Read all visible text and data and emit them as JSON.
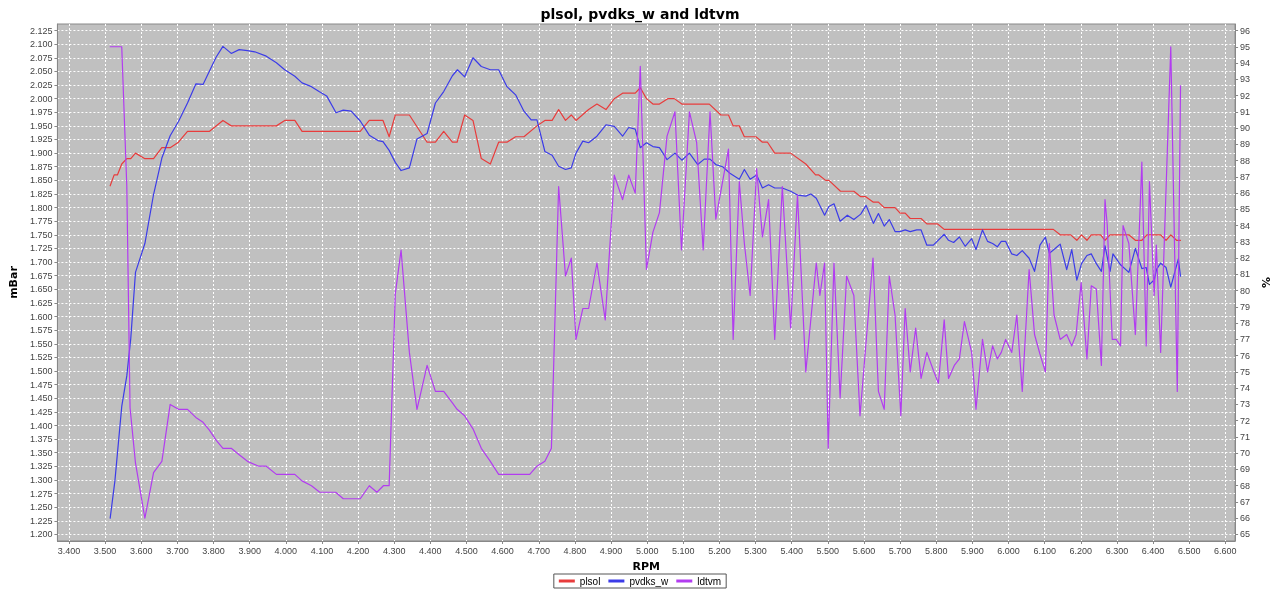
{
  "chart_data": {
    "type": "line",
    "title": "plsol, pvdks_w and ldtvm",
    "xlabel": "RPM",
    "ylabel": "mBar",
    "y2label": "%",
    "grid": true,
    "legend": "bottom",
    "xlim": [
      3368,
      6627
    ],
    "xticks": [
      {
        "value": 3400,
        "label": "3.400"
      },
      {
        "value": 3500,
        "label": "3.500"
      },
      {
        "value": 3600,
        "label": "3.600"
      },
      {
        "value": 3700,
        "label": "3.700"
      },
      {
        "value": 3800,
        "label": "3.800"
      },
      {
        "value": 3900,
        "label": "3.900"
      },
      {
        "value": 4000,
        "label": "4.000"
      },
      {
        "value": 4100,
        "label": "4.100"
      },
      {
        "value": 4200,
        "label": "4.200"
      },
      {
        "value": 4300,
        "label": "4.300"
      },
      {
        "value": 4400,
        "label": "4.400"
      },
      {
        "value": 4500,
        "label": "4.500"
      },
      {
        "value": 4600,
        "label": "4.600"
      },
      {
        "value": 4700,
        "label": "4.700"
      },
      {
        "value": 4800,
        "label": "4.800"
      },
      {
        "value": 4900,
        "label": "4.900"
      },
      {
        "value": 5000,
        "label": "5.000"
      },
      {
        "value": 5100,
        "label": "5.100"
      },
      {
        "value": 5200,
        "label": "5.200"
      },
      {
        "value": 5300,
        "label": "5.300"
      },
      {
        "value": 5400,
        "label": "5.400"
      },
      {
        "value": 5500,
        "label": "5.500"
      },
      {
        "value": 5600,
        "label": "5.600"
      },
      {
        "value": 5700,
        "label": "5.700"
      },
      {
        "value": 5800,
        "label": "5.800"
      },
      {
        "value": 5900,
        "label": "5.900"
      },
      {
        "value": 6000,
        "label": "6.000"
      },
      {
        "value": 6100,
        "label": "6.100"
      },
      {
        "value": 6200,
        "label": "6.200"
      },
      {
        "value": 6300,
        "label": "6.300"
      },
      {
        "value": 6400,
        "label": "6.400"
      },
      {
        "value": 6500,
        "label": "6.500"
      },
      {
        "value": 6600,
        "label": "6.600"
      }
    ],
    "ylim": [
      1188,
      2137
    ],
    "yticks": [
      {
        "value": 1200,
        "label": "1.200"
      },
      {
        "value": 1225,
        "label": "1.225"
      },
      {
        "value": 1250,
        "label": "1.250"
      },
      {
        "value": 1275,
        "label": "1.275"
      },
      {
        "value": 1300,
        "label": "1.300"
      },
      {
        "value": 1325,
        "label": "1.325"
      },
      {
        "value": 1350,
        "label": "1.350"
      },
      {
        "value": 1375,
        "label": "1.375"
      },
      {
        "value": 1400,
        "label": "1.400"
      },
      {
        "value": 1425,
        "label": "1.425"
      },
      {
        "value": 1450,
        "label": "1.450"
      },
      {
        "value": 1475,
        "label": "1.475"
      },
      {
        "value": 1500,
        "label": "1.500"
      },
      {
        "value": 1525,
        "label": "1.525"
      },
      {
        "value": 1550,
        "label": "1.550"
      },
      {
        "value": 1575,
        "label": "1.575"
      },
      {
        "value": 1600,
        "label": "1.600"
      },
      {
        "value": 1625,
        "label": "1.625"
      },
      {
        "value": 1650,
        "label": "1.650"
      },
      {
        "value": 1675,
        "label": "1.675"
      },
      {
        "value": 1700,
        "label": "1.700"
      },
      {
        "value": 1725,
        "label": "1.725"
      },
      {
        "value": 1750,
        "label": "1.750"
      },
      {
        "value": 1775,
        "label": "1.775"
      },
      {
        "value": 1800,
        "label": "1.800"
      },
      {
        "value": 1825,
        "label": "1.825"
      },
      {
        "value": 1850,
        "label": "1.850"
      },
      {
        "value": 1875,
        "label": "1.875"
      },
      {
        "value": 1900,
        "label": "1.900"
      },
      {
        "value": 1925,
        "label": "1.925"
      },
      {
        "value": 1950,
        "label": "1.950"
      },
      {
        "value": 1975,
        "label": "1.975"
      },
      {
        "value": 2000,
        "label": "2.000"
      },
      {
        "value": 2025,
        "label": "2.025"
      },
      {
        "value": 2050,
        "label": "2.050"
      },
      {
        "value": 2075,
        "label": "2.075"
      },
      {
        "value": 2100,
        "label": "2.100"
      },
      {
        "value": 2125,
        "label": "2.125"
      }
    ],
    "y2lim": [
      64.6,
      96.4
    ],
    "y2ticks": [
      65,
      66,
      67,
      68,
      69,
      70,
      71,
      72,
      73,
      74,
      75,
      76,
      77,
      78,
      79,
      80,
      81,
      82,
      83,
      84,
      85,
      86,
      87,
      88,
      89,
      90,
      91,
      92,
      93,
      94,
      95,
      96
    ],
    "series": [
      {
        "name": "plsol",
        "color": "#e83c3c",
        "x": [
          3514,
          3525,
          3534,
          3546,
          3560,
          3571,
          3584,
          3609,
          3634,
          3657,
          3680,
          3703,
          3728,
          3789,
          3826,
          3849,
          3974,
          3997,
          4025,
          4045,
          4206,
          4231,
          4269,
          4286,
          4303,
          4342,
          4391,
          4414,
          4437,
          4461,
          4474,
          4495,
          4518,
          4541,
          4566,
          4589,
          4612,
          4636,
          4659,
          4695,
          4717,
          4737,
          4755,
          4774,
          4790,
          4803,
          4838,
          4861,
          4886,
          4909,
          4932,
          4967,
          4981,
          4998,
          5016,
          5034,
          5057,
          5075,
          5096,
          5172,
          5204,
          5225,
          5238,
          5255,
          5269,
          5301,
          5319,
          5333,
          5353,
          5397,
          5439,
          5466,
          5475,
          5494,
          5503,
          5535,
          5572,
          5591,
          5605,
          5626,
          5640,
          5656,
          5686,
          5700,
          5714,
          5728,
          5758,
          5774,
          5804,
          5822,
          6124,
          6143,
          6172,
          6189,
          6202,
          6217,
          6229,
          6255,
          6267,
          6281,
          6333,
          6351,
          6369,
          6383,
          6421,
          6436,
          6449,
          6465,
          6476
        ],
        "values": [
          1840,
          1860,
          1860,
          1880,
          1890,
          1890,
          1900,
          1890,
          1890,
          1910,
          1910,
          1920,
          1940,
          1940,
          1960,
          1950,
          1950,
          1960,
          1960,
          1940,
          1940,
          1960,
          1960,
          1930,
          1970,
          1970,
          1920,
          1920,
          1940,
          1920,
          1920,
          1970,
          1960,
          1890,
          1880,
          1920,
          1920,
          1930,
          1930,
          1950,
          1960,
          1960,
          1980,
          1960,
          1970,
          1960,
          1980,
          1990,
          1980,
          2000,
          2010,
          2010,
          2020,
          2000,
          1990,
          1990,
          2000,
          2000,
          1990,
          1990,
          1970,
          1970,
          1950,
          1950,
          1930,
          1930,
          1920,
          1920,
          1900,
          1900,
          1880,
          1860,
          1860,
          1850,
          1850,
          1830,
          1830,
          1820,
          1820,
          1810,
          1810,
          1800,
          1800,
          1790,
          1790,
          1780,
          1780,
          1770,
          1770,
          1760,
          1760,
          1750,
          1750,
          1740,
          1750,
          1740,
          1750,
          1750,
          1740,
          1750,
          1750,
          1740,
          1740,
          1750,
          1750,
          1740,
          1750,
          1740,
          1740
        ]
      },
      {
        "name": "pvdks_w",
        "color": "#3c3ce8",
        "x": [
          3514,
          3527,
          3546,
          3560,
          3571,
          3584,
          3610,
          3634,
          3657,
          3680,
          3703,
          3728,
          3751,
          3771,
          3807,
          3826,
          3849,
          3871,
          3894,
          3914,
          3946,
          3974,
          3997,
          4025,
          4045,
          4071,
          4092,
          4113,
          4139,
          4159,
          4181,
          4206,
          4231,
          4255,
          4269,
          4286,
          4303,
          4319,
          4342,
          4363,
          4391,
          4414,
          4437,
          4461,
          4475,
          4495,
          4518,
          4541,
          4566,
          4589,
          4612,
          4636,
          4659,
          4679,
          4695,
          4717,
          4737,
          4755,
          4774,
          4790,
          4803,
          4822,
          4838,
          4861,
          4886,
          4909,
          4932,
          4949,
          4967,
          4981,
          4998,
          5016,
          5034,
          5055,
          5077,
          5096,
          5117,
          5140,
          5158,
          5174,
          5190,
          5209,
          5229,
          5255,
          5269,
          5285,
          5303,
          5319,
          5336,
          5353,
          5374,
          5397,
          5416,
          5439,
          5453,
          5468,
          5491,
          5503,
          5517,
          5534,
          5554,
          5572,
          5591,
          5606,
          5626,
          5640,
          5656,
          5670,
          5686,
          5700,
          5714,
          5728,
          5746,
          5758,
          5774,
          5792,
          5822,
          5834,
          5848,
          5864,
          5880,
          5898,
          5910,
          5928,
          5942,
          5956,
          5969,
          5980,
          5992,
          6009,
          6023,
          6038,
          6057,
          6072,
          6087,
          6102,
          6113,
          6129,
          6143,
          6161,
          6175,
          6189,
          6202,
          6217,
          6229,
          6243,
          6257,
          6267,
          6281,
          6289,
          6310,
          6333,
          6351,
          6369,
          6381,
          6390,
          6403,
          6410,
          6421,
          6436,
          6449,
          6461,
          6470,
          6476
        ],
        "values": [
          1230,
          1298,
          1435,
          1491,
          1560,
          1681,
          1734,
          1824,
          1891,
          1932,
          1958,
          1992,
          2027,
          2026,
          2076,
          2096,
          2083,
          2090,
          2088,
          2086,
          2078,
          2066,
          2053,
          2041,
          2029,
          2022,
          2013,
          2005,
          1974,
          1979,
          1977,
          1959,
          1933,
          1923,
          1921,
          1905,
          1883,
          1868,
          1873,
          1926,
          1936,
          1992,
          2013,
          2042,
          2053,
          2040,
          2075,
          2059,
          2053,
          2053,
          2022,
          2007,
          1977,
          1961,
          1961,
          1903,
          1896,
          1876,
          1870,
          1873,
          1900,
          1922,
          1919,
          1931,
          1952,
          1949,
          1931,
          1947,
          1944,
          1910,
          1919,
          1912,
          1910,
          1888,
          1900,
          1887,
          1900,
          1879,
          1889,
          1889,
          1879,
          1875,
          1863,
          1852,
          1870,
          1852,
          1860,
          1836,
          1842,
          1836,
          1836,
          1830,
          1823,
          1821,
          1825,
          1817,
          1786,
          1802,
          1807,
          1775,
          1786,
          1778,
          1788,
          1804,
          1771,
          1789,
          1766,
          1778,
          1756,
          1756,
          1759,
          1756,
          1759,
          1759,
          1731,
          1731,
          1751,
          1740,
          1736,
          1746,
          1729,
          1743,
          1723,
          1759,
          1738,
          1734,
          1728,
          1738,
          1738,
          1715,
          1712,
          1721,
          1707,
          1683,
          1731,
          1746,
          1716,
          1725,
          1733,
          1686,
          1723,
          1667,
          1697,
          1712,
          1715,
          1697,
          1683,
          1730,
          1683,
          1715,
          1695,
          1681,
          1725,
          1688,
          1690,
          1659,
          1667,
          1687,
          1698,
          1690,
          1654,
          1684,
          1706,
          1674
        ]
      },
      {
        "name": "ldtvm",
        "color": "#b23cf0",
        "axis": "y2",
        "x": [
          3514,
          3546,
          3560,
          3569,
          3584,
          3610,
          3634,
          3657,
          3680,
          3703,
          3728,
          3751,
          3771,
          3789,
          3807,
          3826,
          3849,
          3871,
          3894,
          3925,
          3946,
          3974,
          4025,
          4045,
          4071,
          4094,
          4138,
          4159,
          4206,
          4231,
          4252,
          4270,
          4286,
          4303,
          4319,
          4342,
          4363,
          4391,
          4414,
          4437,
          4461,
          4474,
          4495,
          4518,
          4541,
          4566,
          4589,
          4675,
          4695,
          4717,
          4735,
          4755,
          4774,
          4790,
          4803,
          4822,
          4838,
          4861,
          4884,
          4909,
          4932,
          4949,
          4967,
          4981,
          4998,
          5016,
          5034,
          5055,
          5077,
          5095,
          5117,
          5137,
          5155,
          5174,
          5190,
          5225,
          5238,
          5255,
          5269,
          5285,
          5303,
          5319,
          5336,
          5353,
          5374,
          5397,
          5416,
          5439,
          5468,
          5478,
          5491,
          5501,
          5517,
          5534,
          5552,
          5572,
          5589,
          5625,
          5640,
          5656,
          5670,
          5686,
          5702,
          5714,
          5728,
          5743,
          5758,
          5774,
          5792,
          5806,
          5822,
          5834,
          5850,
          5864,
          5878,
          5898,
          5910,
          5928,
          5942,
          5956,
          5969,
          5980,
          5992,
          6009,
          6023,
          6038,
          6057,
          6072,
          6087,
          6102,
          6113,
          6126,
          6143,
          6161,
          6175,
          6187,
          6201,
          6217,
          6229,
          6243,
          6257,
          6267,
          6273,
          6287,
          6298,
          6310,
          6317,
          6333,
          6351,
          6369,
          6381,
          6390,
          6403,
          6409,
          6421,
          6449,
          6467,
          6476
        ],
        "values": [
          95.0,
          95.0,
          86.4,
          72.8,
          69.4,
          66.0,
          68.8,
          69.5,
          73.0,
          72.7,
          72.7,
          72.2,
          71.9,
          71.4,
          70.8,
          70.3,
          70.3,
          69.9,
          69.5,
          69.2,
          69.2,
          68.7,
          68.7,
          68.3,
          68.0,
          67.6,
          67.6,
          67.2,
          67.2,
          68.0,
          67.6,
          68.0,
          68.0,
          79.8,
          82.5,
          76.2,
          72.7,
          75.4,
          73.8,
          73.8,
          73.1,
          72.7,
          72.3,
          71.5,
          70.3,
          69.5,
          68.7,
          68.7,
          69.2,
          69.5,
          70.3,
          86.4,
          80.9,
          82.0,
          77.0,
          78.9,
          78.9,
          81.7,
          78.2,
          87.1,
          85.6,
          87.1,
          86.0,
          93.8,
          81.3,
          83.6,
          84.8,
          89.5,
          91.0,
          82.5,
          91.0,
          89.1,
          82.5,
          91.0,
          84.4,
          88.7,
          77.0,
          86.7,
          82.9,
          79.7,
          87.5,
          83.3,
          85.6,
          77.0,
          86.4,
          77.7,
          85.9,
          75.0,
          81.7,
          79.7,
          81.7,
          70.3,
          81.7,
          73.4,
          80.9,
          79.7,
          72.3,
          82.0,
          73.8,
          72.7,
          80.9,
          78.5,
          72.3,
          78.9,
          75.0,
          77.7,
          74.6,
          76.2,
          75.1,
          74.3,
          78.2,
          74.6,
          75.4,
          75.8,
          78.1,
          76.2,
          72.7,
          77.0,
          75.0,
          76.6,
          75.8,
          76.2,
          77.0,
          76.2,
          78.5,
          73.8,
          81.3,
          77.3,
          76.1,
          75.0,
          82.9,
          78.5,
          77.0,
          77.3,
          76.6,
          77.3,
          80.5,
          75.8,
          80.3,
          80.1,
          75.4,
          85.6,
          84.1,
          77.0,
          77.0,
          76.6,
          84.0,
          82.9,
          77.3,
          87.9,
          76.6,
          86.7,
          79.7,
          82.8,
          76.2,
          95.0,
          73.8,
          92.6
        ]
      }
    ]
  }
}
